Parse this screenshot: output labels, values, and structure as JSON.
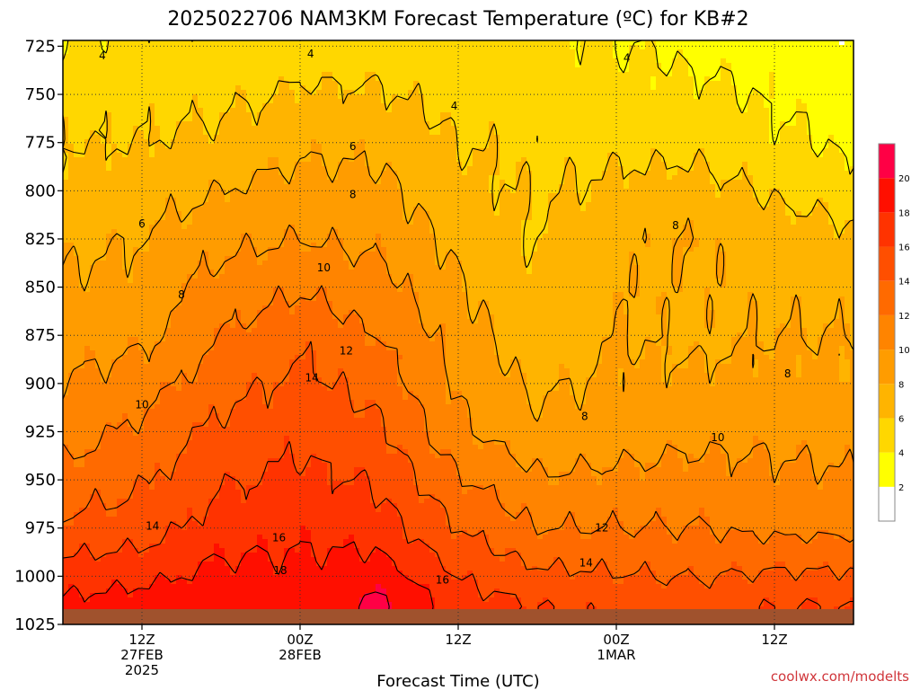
{
  "chart_data": {
    "type": "heatmap",
    "title": "2025022706 NAM3KM Forecast Temperature (ºC) for KB#2",
    "xlabel": "Forecast Time (UTC)",
    "ylabel": "",
    "credit": "coolwx.com/modelts",
    "y_axis": {
      "label": "",
      "ticks": [
        725,
        750,
        775,
        800,
        825,
        850,
        875,
        900,
        925,
        950,
        975,
        1000,
        1025
      ],
      "range": [
        722,
        1025
      ],
      "inverted": true,
      "grid": "dotted"
    },
    "x_axis": {
      "range_hours": [
        6,
        66
      ],
      "ticks": [
        {
          "hour": 12,
          "lines": [
            "12Z",
            "27FEB",
            "2025"
          ]
        },
        {
          "hour": 24,
          "lines": [
            "00Z",
            "28FEB"
          ]
        },
        {
          "hour": 36,
          "lines": [
            "12Z"
          ]
        },
        {
          "hour": 48,
          "lines": [
            "00Z",
            "1MAR"
          ]
        },
        {
          "hour": 60,
          "lines": [
            "12Z"
          ]
        }
      ],
      "grid": "dotted"
    },
    "levels": [
      2,
      4,
      6,
      8,
      10,
      12,
      14,
      16,
      18,
      20
    ],
    "colors": [
      "#ffffff",
      "#ffff00",
      "#ffd700",
      "#ffb400",
      "#ff9c00",
      "#ff8400",
      "#ff6a00",
      "#ff4f00",
      "#ff3300",
      "#ff0f00",
      "#ff0045"
    ],
    "colorbar_labels": [
      "2",
      "4",
      "6",
      "8",
      "10",
      "12",
      "14",
      "16",
      "18",
      "20"
    ],
    "surface_color": "#a0522d",
    "temperature_samples": {
      "pressure": [
        725,
        775,
        825,
        875,
        925,
        975,
        1015
      ],
      "hours": [
        6,
        12,
        18,
        24,
        30,
        36,
        42,
        48,
        54,
        60,
        66
      ],
      "values": [
        [
          4.0,
          4.5,
          4.5,
          5.0,
          5.0,
          4.5,
          4.5,
          4.0,
          3.5,
          3.0,
          2.5
        ],
        [
          6.0,
          6.0,
          6.5,
          7.5,
          7.5,
          6.0,
          5.5,
          5.5,
          5.5,
          4.5,
          3.5
        ],
        [
          7.5,
          8.0,
          9.5,
          10.0,
          9.5,
          7.5,
          6.0,
          7.5,
          8.0,
          7.0,
          6.5
        ],
        [
          9.0,
          9.5,
          12.0,
          13.5,
          12.0,
          9.0,
          6.5,
          8.0,
          7.5,
          8.0,
          8.0
        ],
        [
          11.0,
          12.5,
          14.5,
          15.5,
          14.5,
          10.5,
          8.5,
          9.0,
          9.5,
          9.5,
          9.0
        ],
        [
          14.5,
          15.0,
          17.0,
          17.5,
          17.0,
          14.0,
          12.0,
          12.0,
          12.0,
          11.5,
          11.5
        ],
        [
          18.5,
          19.0,
          19.5,
          19.0,
          20.5,
          17.0,
          16.0,
          15.5,
          15.0,
          16.0,
          16.0
        ]
      ]
    },
    "contour_labels": [
      {
        "text": "4",
        "hour": 9.0,
        "p": 730
      },
      {
        "text": "4",
        "hour": 24.8,
        "p": 729
      },
      {
        "text": "4",
        "hour": 48.8,
        "p": 731
      },
      {
        "text": "4",
        "hour": 35.7,
        "p": 756
      },
      {
        "text": "6",
        "hour": 28.0,
        "p": 777
      },
      {
        "text": "6",
        "hour": 12.0,
        "p": 817
      },
      {
        "text": "8",
        "hour": 28.0,
        "p": 802
      },
      {
        "text": "8",
        "hour": 52.5,
        "p": 818
      },
      {
        "text": "8",
        "hour": 15.0,
        "p": 854
      },
      {
        "text": "8",
        "hour": 61.0,
        "p": 895
      },
      {
        "text": "8",
        "hour": 45.6,
        "p": 917
      },
      {
        "text": "10",
        "hour": 25.8,
        "p": 840
      },
      {
        "text": "10",
        "hour": 12.0,
        "p": 911
      },
      {
        "text": "10",
        "hour": 55.7,
        "p": 928
      },
      {
        "text": "12",
        "hour": 27.5,
        "p": 883
      },
      {
        "text": "12",
        "hour": 46.9,
        "p": 975
      },
      {
        "text": "14",
        "hour": 24.9,
        "p": 897
      },
      {
        "text": "14",
        "hour": 12.8,
        "p": 974
      },
      {
        "text": "14",
        "hour": 45.7,
        "p": 993
      },
      {
        "text": "16",
        "hour": 22.4,
        "p": 980
      },
      {
        "text": "16",
        "hour": 34.8,
        "p": 1002
      },
      {
        "text": "18",
        "hour": 22.5,
        "p": 997
      }
    ]
  }
}
